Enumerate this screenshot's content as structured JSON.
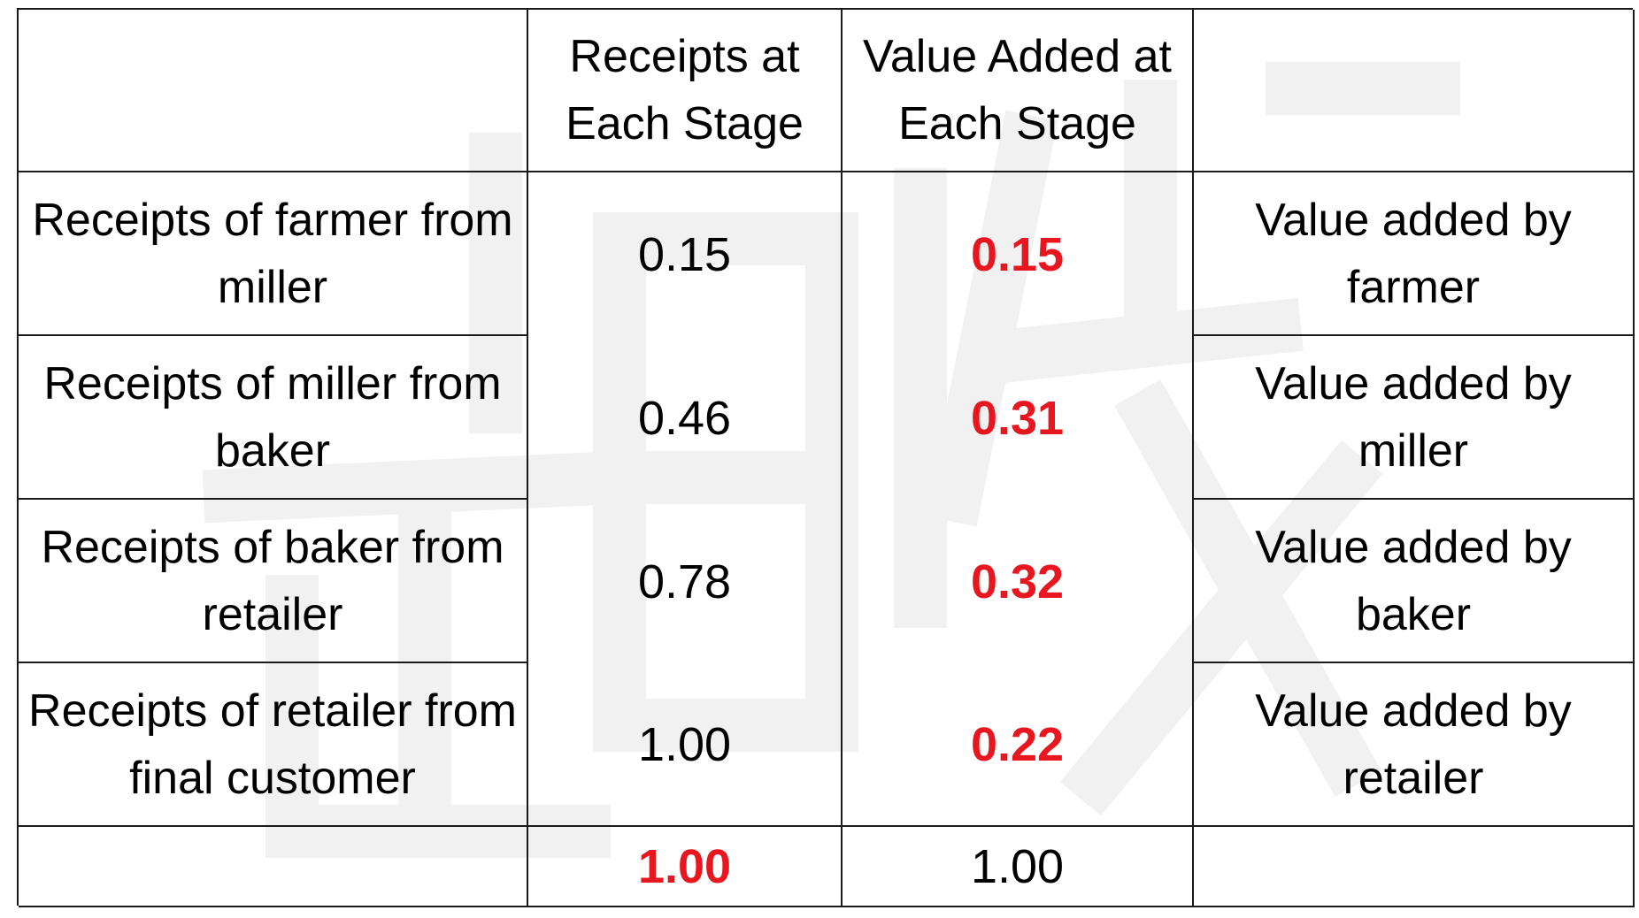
{
  "table": {
    "header": {
      "col0": "",
      "receipts": "Receipts at Each Stage",
      "value_added": "Value Added at Each Stage",
      "col3": ""
    },
    "rows": [
      {
        "label": "Receipts of farmer from miller",
        "receipts": "0.15",
        "value_added": "0.15",
        "va_label": "Value added by farmer"
      },
      {
        "label": "Receipts of miller from baker",
        "receipts": "0.46",
        "value_added": "0.31",
        "va_label": "Value added by miller"
      },
      {
        "label": "Receipts of baker from retailer",
        "receipts": "0.78",
        "value_added": "0.32",
        "va_label": "Value added by baker"
      },
      {
        "label": "Receipts of retailer from final customer",
        "receipts": "1.00",
        "value_added": "0.22",
        "va_label": "Value added by retailer"
      }
    ],
    "totals": {
      "label": "",
      "receipts": "1.00",
      "value_added": "1.00",
      "va_label": ""
    }
  },
  "colors": {
    "highlight": "#e8161f",
    "grid_line": "#1a1a1a",
    "watermark": "#f2f2f2"
  }
}
